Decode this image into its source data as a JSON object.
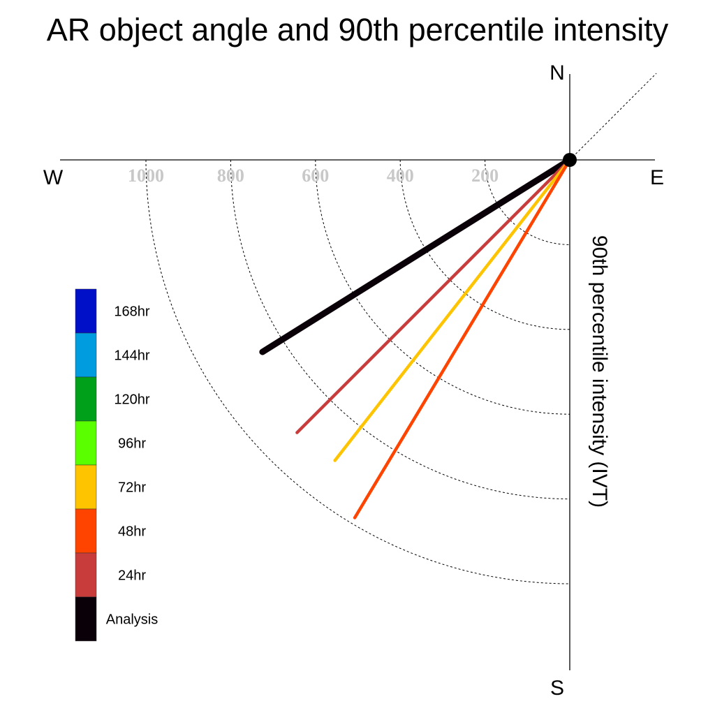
{
  "chart_data": {
    "type": "polar-vector",
    "title": "AR object angle and 90th percentile intensity",
    "ylabel": "90th percentile intensity (IVT)",
    "compass": {
      "north": "N",
      "south": "S",
      "east": "E",
      "west": "W"
    },
    "radial_ticks": [
      "200",
      "400",
      "600",
      "800",
      "1000"
    ],
    "radial_tick_values": [
      200,
      400,
      600,
      800,
      1000
    ],
    "rlim": [
      0,
      1200
    ],
    "grid": true,
    "legend_placement": "left",
    "legend": [
      {
        "label": "168hr",
        "color": "#0010c8"
      },
      {
        "label": "144hr",
        "color": "#009ce0"
      },
      {
        "label": "120hr",
        "color": "#00a01a"
      },
      {
        "label": "96hr",
        "color": "#5aff00"
      },
      {
        "label": "72hr",
        "color": "#ffc400"
      },
      {
        "label": "48hr",
        "color": "#ff4400"
      },
      {
        "label": "24hr",
        "color": "#c83c3c"
      },
      {
        "label": "Analysis",
        "color": "#0a0008"
      }
    ],
    "series": [
      {
        "name": "Analysis",
        "color": "#0a0008",
        "angle_deg": 238,
        "intensity": 855
      },
      {
        "name": "24hr",
        "color": "#c83c3c",
        "angle_deg": 225,
        "intensity": 910
      },
      {
        "name": "72hr",
        "color": "#ffc400",
        "angle_deg": 218,
        "intensity": 900
      },
      {
        "name": "48hr",
        "color": "#ff4400",
        "angle_deg": 211,
        "intensity": 985
      }
    ]
  }
}
